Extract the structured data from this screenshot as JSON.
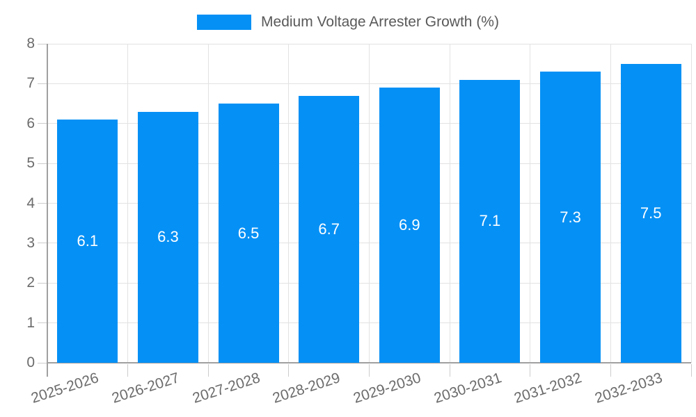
{
  "chart_data": {
    "type": "bar",
    "title": "",
    "legend": "Medium Voltage Arrester Growth (%)",
    "legend_position": "top-center",
    "categories": [
      "2025-2026",
      "2026-2027",
      "2027-2028",
      "2028-2029",
      "2029-2030",
      "2030-2031",
      "2031-2032",
      "2032-2033"
    ],
    "values": [
      6.1,
      6.3,
      6.5,
      6.7,
      6.9,
      7.1,
      7.3,
      7.5
    ],
    "value_labels": [
      "6.1",
      "6.3",
      "6.5",
      "6.7",
      "6.9",
      "7.1",
      "7.3",
      "7.5"
    ],
    "xlabel": "",
    "ylabel": "",
    "ylim": [
      0,
      8
    ],
    "yticks": [
      0,
      1,
      2,
      3,
      4,
      5,
      6,
      7,
      8
    ],
    "grid": true,
    "x_label_rotation_deg": -18,
    "colors": {
      "bar": "#0590f5",
      "bar_label": "#ffffff",
      "legend_text": "#595959",
      "axis_text": "#6b6b6b",
      "gridline": "#e2e2e2",
      "axis_line": "#a0a0a0",
      "tick": "#cccccc",
      "background": "#ffffff"
    }
  }
}
